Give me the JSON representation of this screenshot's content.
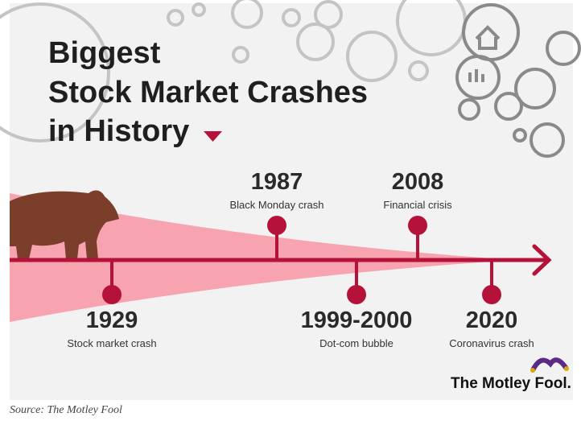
{
  "title": [
    "Biggest",
    "Stock Market Crashes",
    "in History"
  ],
  "events": [
    {
      "year": "1929",
      "label": "Stock market crash"
    },
    {
      "year": "1987",
      "label": "Black Monday crash"
    },
    {
      "year": "1999-2000",
      "label": "Dot-com bubble"
    },
    {
      "year": "2008",
      "label": "Financial crisis"
    },
    {
      "year": "2020",
      "label": "Coronavirus crash"
    }
  ],
  "brand": "The Motley Fool.",
  "source": "Source: The Motley Fool"
}
